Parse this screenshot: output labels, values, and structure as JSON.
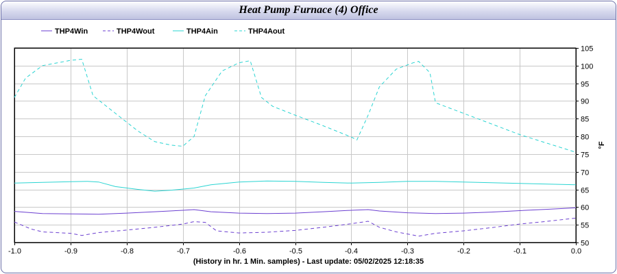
{
  "title": "Heat Pump Furnace (4) Office",
  "footer": "(History in hr. 1 Min. samples) - Last update: 05/02/2025 12:18:35",
  "chart_data": {
    "type": "line",
    "title": "Heat Pump Furnace (4) Office",
    "xlabel": "(History in hr. 1 Min. samples) - Last update: 05/02/2025 12:18:35",
    "ylabel": "°F",
    "xlim": [
      -1.0,
      0.0
    ],
    "ylim": [
      50,
      105
    ],
    "xticks": [
      -1.0,
      -0.9,
      -0.8,
      -0.7,
      -0.6,
      -0.5,
      -0.4,
      -0.3,
      -0.2,
      -0.1,
      0.0
    ],
    "xtick_labels": [
      "-1.0",
      "-0.9",
      "-0.8",
      "-0.7",
      "-0.6",
      "-0.5",
      "-0.4",
      "-0.3",
      "-0.2",
      "-0.1",
      "0.0"
    ],
    "yticks": [
      50,
      55,
      60,
      65,
      70,
      75,
      80,
      85,
      90,
      95,
      100,
      105
    ],
    "grid": true,
    "legend_position": "top-left",
    "series": [
      {
        "name": "THP4Win",
        "color": "#6a3ed0",
        "dash": "solid",
        "points": [
          [
            -1.0,
            58.8
          ],
          [
            -0.95,
            58.2
          ],
          [
            -0.9,
            58.1
          ],
          [
            -0.85,
            58.0
          ],
          [
            -0.8,
            58.3
          ],
          [
            -0.75,
            58.7
          ],
          [
            -0.7,
            59.1
          ],
          [
            -0.68,
            59.3
          ],
          [
            -0.65,
            58.7
          ],
          [
            -0.6,
            58.3
          ],
          [
            -0.55,
            58.2
          ],
          [
            -0.5,
            58.3
          ],
          [
            -0.45,
            58.7
          ],
          [
            -0.4,
            59.1
          ],
          [
            -0.37,
            59.3
          ],
          [
            -0.35,
            58.9
          ],
          [
            -0.3,
            58.4
          ],
          [
            -0.25,
            58.2
          ],
          [
            -0.2,
            58.3
          ],
          [
            -0.15,
            58.6
          ],
          [
            -0.1,
            59.0
          ],
          [
            -0.05,
            59.4
          ],
          [
            0.0,
            59.8
          ]
        ]
      },
      {
        "name": "THP4Wout",
        "color": "#6a3ed0",
        "dash": "dashed",
        "points": [
          [
            -1.0,
            55.8
          ],
          [
            -0.97,
            53.8
          ],
          [
            -0.95,
            53.0
          ],
          [
            -0.9,
            52.6
          ],
          [
            -0.88,
            52.0
          ],
          [
            -0.85,
            52.8
          ],
          [
            -0.8,
            53.5
          ],
          [
            -0.75,
            54.3
          ],
          [
            -0.7,
            55.2
          ],
          [
            -0.68,
            55.9
          ],
          [
            -0.66,
            55.7
          ],
          [
            -0.64,
            53.3
          ],
          [
            -0.6,
            52.7
          ],
          [
            -0.55,
            52.9
          ],
          [
            -0.5,
            53.4
          ],
          [
            -0.45,
            54.3
          ],
          [
            -0.4,
            55.3
          ],
          [
            -0.37,
            56.0
          ],
          [
            -0.35,
            54.3
          ],
          [
            -0.32,
            53.0
          ],
          [
            -0.28,
            51.8
          ],
          [
            -0.25,
            52.6
          ],
          [
            -0.2,
            53.3
          ],
          [
            -0.15,
            54.2
          ],
          [
            -0.1,
            55.2
          ],
          [
            -0.05,
            56.0
          ],
          [
            0.0,
            56.9
          ]
        ]
      },
      {
        "name": "THP4Ain",
        "color": "#2ad4d2",
        "dash": "solid",
        "points": [
          [
            -1.0,
            66.8
          ],
          [
            -0.95,
            67.0
          ],
          [
            -0.9,
            67.2
          ],
          [
            -0.87,
            67.3
          ],
          [
            -0.85,
            67.1
          ],
          [
            -0.82,
            65.8
          ],
          [
            -0.78,
            65.0
          ],
          [
            -0.75,
            64.5
          ],
          [
            -0.72,
            64.8
          ],
          [
            -0.68,
            65.4
          ],
          [
            -0.65,
            66.3
          ],
          [
            -0.6,
            67.1
          ],
          [
            -0.55,
            67.4
          ],
          [
            -0.5,
            67.3
          ],
          [
            -0.45,
            67.0
          ],
          [
            -0.4,
            66.8
          ],
          [
            -0.35,
            67.0
          ],
          [
            -0.3,
            67.3
          ],
          [
            -0.25,
            67.3
          ],
          [
            -0.2,
            67.1
          ],
          [
            -0.15,
            66.9
          ],
          [
            -0.1,
            66.7
          ],
          [
            -0.05,
            66.5
          ],
          [
            0.0,
            66.3
          ]
        ]
      },
      {
        "name": "THP4Aout",
        "color": "#2ad4d2",
        "dash": "dashed",
        "points": [
          [
            -1.0,
            91.0
          ],
          [
            -0.98,
            96.5
          ],
          [
            -0.95,
            100.0
          ],
          [
            -0.9,
            101.5
          ],
          [
            -0.88,
            101.8
          ],
          [
            -0.86,
            91.5
          ],
          [
            -0.82,
            86.5
          ],
          [
            -0.78,
            81.5
          ],
          [
            -0.75,
            78.5
          ],
          [
            -0.72,
            77.5
          ],
          [
            -0.7,
            77.2
          ],
          [
            -0.68,
            80.0
          ],
          [
            -0.66,
            91.5
          ],
          [
            -0.63,
            98.5
          ],
          [
            -0.6,
            100.8
          ],
          [
            -0.58,
            101.4
          ],
          [
            -0.56,
            91.0
          ],
          [
            -0.54,
            88.5
          ],
          [
            -0.5,
            86.0
          ],
          [
            -0.45,
            83.0
          ],
          [
            -0.4,
            79.8
          ],
          [
            -0.39,
            79.0
          ],
          [
            -0.37,
            86.0
          ],
          [
            -0.35,
            94.0
          ],
          [
            -0.32,
            99.0
          ],
          [
            -0.29,
            100.8
          ],
          [
            -0.28,
            101.2
          ],
          [
            -0.26,
            98.0
          ],
          [
            -0.25,
            89.5
          ],
          [
            -0.2,
            86.5
          ],
          [
            -0.15,
            83.5
          ],
          [
            -0.1,
            80.5
          ],
          [
            -0.05,
            78.0
          ],
          [
            0.0,
            75.5
          ]
        ]
      }
    ]
  }
}
